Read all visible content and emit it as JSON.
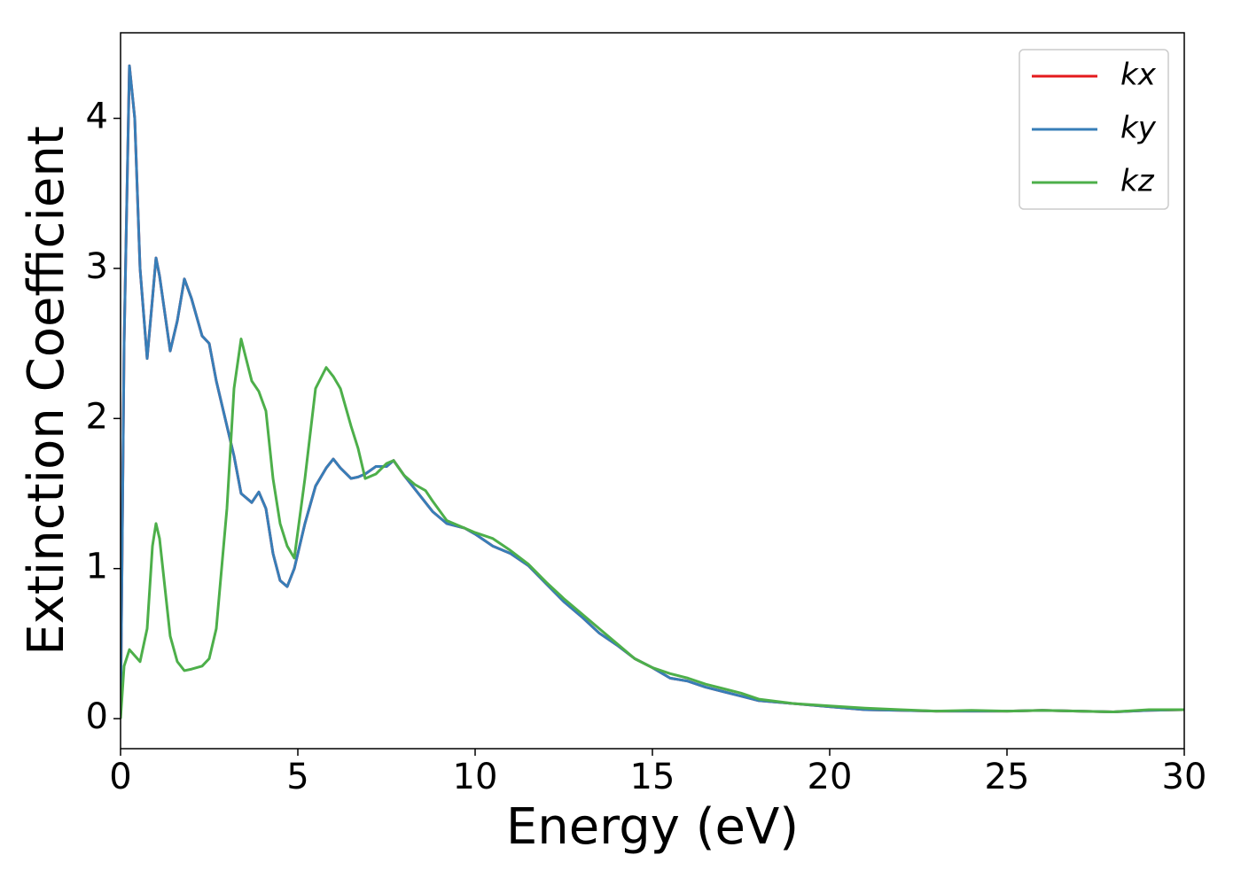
{
  "chart_data": {
    "type": "line",
    "xlabel": "Energy (eV)",
    "ylabel": "Extinction Coefficient",
    "x": [
      0,
      0.1,
      0.25,
      0.4,
      0.55,
      0.75,
      0.9,
      1.0,
      1.1,
      1.4,
      1.6,
      1.8,
      2.0,
      2.3,
      2.5,
      2.7,
      3.0,
      3.2,
      3.4,
      3.7,
      3.9,
      4.1,
      4.3,
      4.5,
      4.7,
      4.9,
      5.2,
      5.5,
      5.8,
      6.0,
      6.2,
      6.5,
      6.7,
      6.9,
      7.2,
      7.5,
      7.7,
      8.0,
      8.3,
      8.6,
      8.8,
      9.2,
      9.7,
      10,
      10.5,
      11,
      11.5,
      12,
      12.5,
      13,
      13.5,
      14,
      14.5,
      15,
      15.5,
      16,
      16.5,
      17,
      17.5,
      18,
      19,
      20,
      21,
      22,
      23,
      24,
      25,
      26,
      27,
      28,
      29,
      30
    ],
    "series": [
      {
        "name": "kx",
        "color": "#e41a1c",
        "values": [
          0,
          2.5,
          4.35,
          4.0,
          3.0,
          2.4,
          2.8,
          3.07,
          2.95,
          2.45,
          2.65,
          2.93,
          2.8,
          2.55,
          2.5,
          2.25,
          1.95,
          1.75,
          1.5,
          1.44,
          1.51,
          1.4,
          1.1,
          0.92,
          0.88,
          1.0,
          1.3,
          1.55,
          1.67,
          1.73,
          1.67,
          1.6,
          1.61,
          1.63,
          1.68,
          1.68,
          1.72,
          1.62,
          1.53,
          1.44,
          1.38,
          1.3,
          1.27,
          1.23,
          1.15,
          1.1,
          1.02,
          0.9,
          0.78,
          0.68,
          0.57,
          0.49,
          0.4,
          0.34,
          0.27,
          0.25,
          0.21,
          0.18,
          0.15,
          0.12,
          0.1,
          0.08,
          0.06,
          0.055,
          0.05,
          0.05,
          0.05,
          0.055,
          0.05,
          0.045,
          0.055,
          0.06
        ]
      },
      {
        "name": "ky",
        "color": "#377eb8",
        "values": [
          0,
          2.5,
          4.35,
          4.0,
          3.0,
          2.4,
          2.8,
          3.07,
          2.95,
          2.45,
          2.65,
          2.93,
          2.8,
          2.55,
          2.5,
          2.25,
          1.95,
          1.75,
          1.5,
          1.44,
          1.51,
          1.4,
          1.1,
          0.92,
          0.88,
          1.0,
          1.3,
          1.55,
          1.67,
          1.73,
          1.67,
          1.6,
          1.61,
          1.63,
          1.68,
          1.68,
          1.72,
          1.62,
          1.53,
          1.44,
          1.38,
          1.3,
          1.27,
          1.23,
          1.15,
          1.1,
          1.02,
          0.9,
          0.78,
          0.68,
          0.57,
          0.49,
          0.4,
          0.34,
          0.27,
          0.25,
          0.21,
          0.18,
          0.15,
          0.12,
          0.1,
          0.08,
          0.06,
          0.055,
          0.05,
          0.05,
          0.05,
          0.055,
          0.05,
          0.045,
          0.055,
          0.06
        ]
      },
      {
        "name": "kz",
        "color": "#4daf4a",
        "values": [
          0,
          0.35,
          0.46,
          0.42,
          0.38,
          0.6,
          1.15,
          1.3,
          1.2,
          0.55,
          0.38,
          0.32,
          0.33,
          0.35,
          0.4,
          0.6,
          1.4,
          2.2,
          2.53,
          2.25,
          2.18,
          2.05,
          1.6,
          1.3,
          1.15,
          1.07,
          1.6,
          2.2,
          2.34,
          2.28,
          2.2,
          1.95,
          1.8,
          1.6,
          1.63,
          1.7,
          1.72,
          1.62,
          1.56,
          1.52,
          1.45,
          1.32,
          1.27,
          1.24,
          1.2,
          1.12,
          1.03,
          0.91,
          0.8,
          0.7,
          0.6,
          0.5,
          0.4,
          0.34,
          0.3,
          0.27,
          0.23,
          0.2,
          0.17,
          0.13,
          0.1,
          0.085,
          0.07,
          0.06,
          0.05,
          0.055,
          0.05,
          0.055,
          0.05,
          0.045,
          0.06,
          0.06
        ]
      }
    ],
    "xlim": [
      0,
      30
    ],
    "xticks": [
      0,
      5,
      10,
      15,
      20,
      25,
      30
    ],
    "ylim": [
      -0.2,
      4.57
    ],
    "yticks": [
      0,
      1,
      2,
      3,
      4
    ],
    "grid": false,
    "legend": "upper right"
  }
}
